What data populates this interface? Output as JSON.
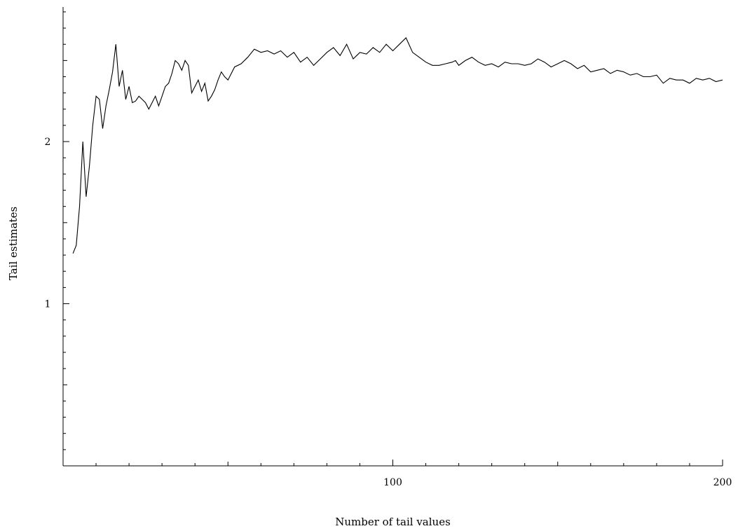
{
  "chart_data": {
    "type": "line",
    "title": "",
    "xlabel": "Number of tail values",
    "ylabel": "Tail estimates",
    "xlim": [
      0,
      200
    ],
    "ylim": [
      0,
      2.75
    ],
    "x_ticks": [
      {
        "value": 100,
        "label": "100"
      },
      {
        "value": 200,
        "label": "200"
      }
    ],
    "y_ticks": [
      {
        "value": 1,
        "label": "1"
      },
      {
        "value": 2,
        "label": "2"
      }
    ],
    "grid": false,
    "series": [
      {
        "x": [
          3,
          4,
          5,
          6,
          7,
          8,
          9,
          10,
          11,
          12,
          13,
          14,
          15,
          16,
          17,
          18,
          19,
          20,
          21,
          22,
          23,
          24,
          25,
          26,
          27,
          28,
          29,
          30,
          31,
          32,
          33,
          34,
          35,
          36,
          37,
          38,
          39,
          40,
          41,
          42,
          43,
          44,
          45,
          46,
          47,
          48,
          49,
          50,
          52,
          54,
          56,
          58,
          60,
          62,
          64,
          66,
          68,
          70,
          72,
          74,
          76,
          78,
          80,
          82,
          84,
          86,
          88,
          90,
          92,
          94,
          96,
          98,
          100,
          102,
          104,
          106,
          108,
          110,
          112,
          114,
          116,
          118,
          119,
          120,
          122,
          124,
          126,
          128,
          130,
          132,
          134,
          136,
          138,
          140,
          142,
          144,
          146,
          148,
          150,
          152,
          154,
          156,
          158,
          160,
          162,
          164,
          166,
          168,
          170,
          172,
          174,
          176,
          178,
          180,
          182,
          184,
          186,
          188,
          190,
          192,
          194,
          196,
          198,
          200
        ],
        "values": [
          1.31,
          1.36,
          1.6,
          2.0,
          1.66,
          1.85,
          2.1,
          2.28,
          2.26,
          2.08,
          2.22,
          2.32,
          2.43,
          2.6,
          2.34,
          2.44,
          2.26,
          2.34,
          2.24,
          2.25,
          2.28,
          2.26,
          2.24,
          2.2,
          2.24,
          2.28,
          2.22,
          2.28,
          2.34,
          2.36,
          2.42,
          2.5,
          2.48,
          2.44,
          2.5,
          2.47,
          2.3,
          2.34,
          2.38,
          2.31,
          2.36,
          2.25,
          2.28,
          2.32,
          2.38,
          2.43,
          2.4,
          2.38,
          2.46,
          2.48,
          2.52,
          2.57,
          2.55,
          2.56,
          2.54,
          2.56,
          2.52,
          2.55,
          2.49,
          2.52,
          2.47,
          2.51,
          2.55,
          2.58,
          2.53,
          2.6,
          2.51,
          2.55,
          2.54,
          2.58,
          2.55,
          2.6,
          2.56,
          2.6,
          2.64,
          2.55,
          2.52,
          2.49,
          2.47,
          2.47,
          2.48,
          2.49,
          2.5,
          2.47,
          2.5,
          2.52,
          2.49,
          2.47,
          2.48,
          2.46,
          2.49,
          2.48,
          2.48,
          2.47,
          2.48,
          2.51,
          2.49,
          2.46,
          2.48,
          2.5,
          2.48,
          2.45,
          2.47,
          2.43,
          2.44,
          2.45,
          2.42,
          2.44,
          2.43,
          2.41,
          2.42,
          2.4,
          2.4,
          2.41,
          2.36,
          2.39,
          2.38,
          2.38,
          2.36,
          2.39,
          2.38,
          2.39,
          2.37,
          2.38
        ]
      }
    ]
  }
}
